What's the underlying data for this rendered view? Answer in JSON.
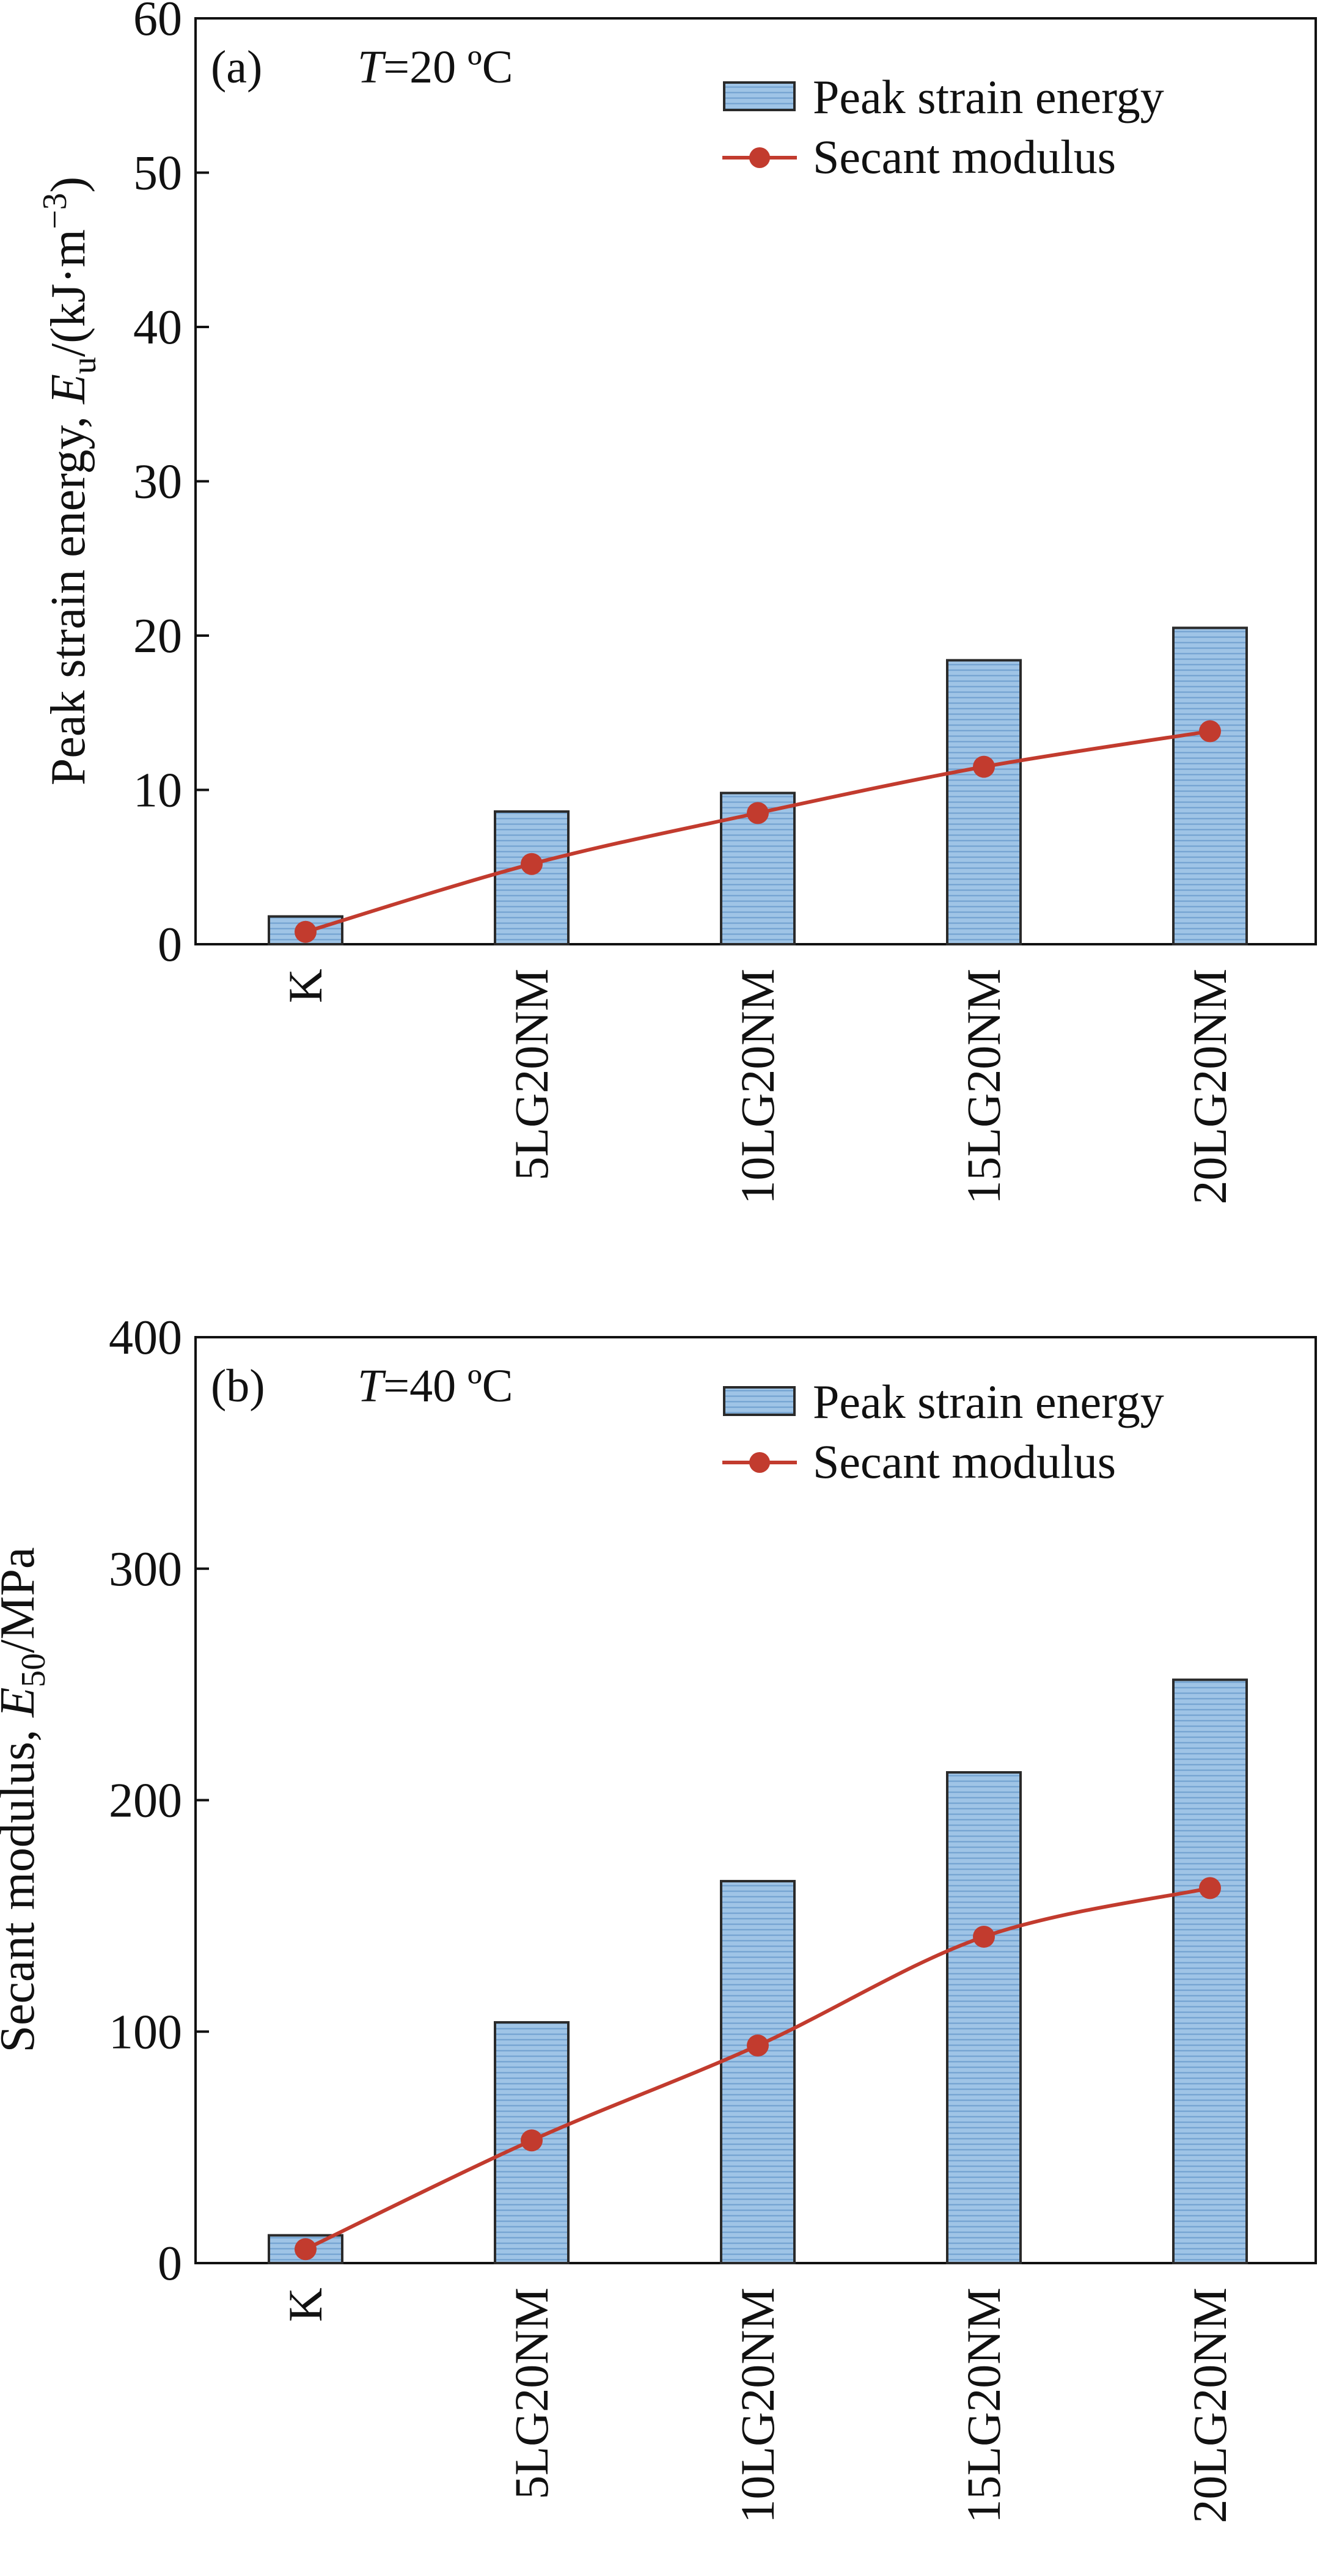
{
  "chart_data": [
    {
      "type": "bar",
      "panel_label": "(a)",
      "condition": {
        "var": "T",
        "rest": "=20 ºC"
      },
      "categories": [
        "K",
        "5LG20NM",
        "10LG20NM",
        "15LG20NM",
        "20LG20NM"
      ],
      "series": [
        {
          "name": "Peak strain energy",
          "type": "bar",
          "axis": "left",
          "values": [
            1.8,
            8.6,
            9.8,
            18.4,
            20.5
          ]
        },
        {
          "name": "Secant modulus",
          "type": "line",
          "axis": "right",
          "values": [
            0.8,
            5.2,
            8.5,
            11.5,
            13.8
          ]
        }
      ],
      "y_axis": {
        "label_parts": [
          "Peak strain energy, ",
          "E",
          "u",
          "/(kJ·m",
          "−3",
          ")"
        ],
        "ylim": [
          0,
          60
        ],
        "ticks": [
          "0",
          "10",
          "20",
          "30",
          "40",
          "50",
          "60"
        ]
      },
      "legend": [
        "Peak strain energy",
        "Secant modulus"
      ],
      "legend_position": "top-right"
    },
    {
      "type": "bar",
      "panel_label": "(b)",
      "condition": {
        "var": "T",
        "rest": "=40 ºC"
      },
      "categories": [
        "K",
        "5LG20NM",
        "10LG20NM",
        "15LG20NM",
        "20LG20NM"
      ],
      "series": [
        {
          "name": "Peak strain energy",
          "type": "bar",
          "axis": "left",
          "values": [
            12,
            104,
            165,
            212,
            252
          ]
        },
        {
          "name": "Secant modulus",
          "type": "line",
          "axis": "right",
          "values": [
            6,
            53,
            94,
            141,
            162
          ]
        }
      ],
      "y_axis": {
        "label_parts": [
          "Secant modulus, ",
          "E",
          "50",
          "/MPa"
        ],
        "ylim": [
          0,
          400
        ],
        "ticks": [
          "0",
          "100",
          "200",
          "300",
          "400"
        ]
      },
      "legend": [
        "Peak strain energy",
        "Secant modulus"
      ],
      "legend_position": "top-right"
    }
  ],
  "colors": {
    "bar_fill": "#9fc4e6",
    "bar_stripe": "#6f9fcf",
    "bar_edge": "#2a2a2a",
    "line": "#c23b2e",
    "axis": "#111111"
  }
}
